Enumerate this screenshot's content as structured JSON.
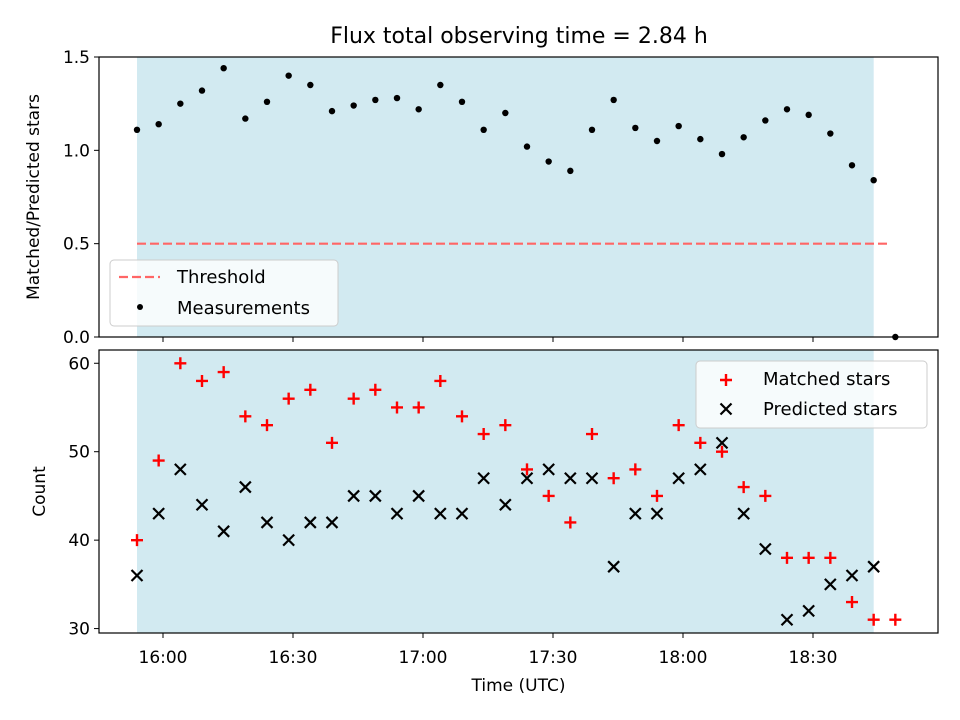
{
  "title": "Flux total observing time = 2.84 h",
  "colors": {
    "band": "#add8e6",
    "threshold": "#ff6666",
    "matched": "#ff0000",
    "predicted": "#000000"
  },
  "chart_data": [
    {
      "type": "scatter",
      "ylabel": "Matched/Predicted stars",
      "ylim": [
        0.0,
        1.5
      ],
      "yticks": [
        "0.0",
        "0.5",
        "1.0",
        "1.5"
      ],
      "shaded_range": [
        "15:54",
        "18:44"
      ],
      "threshold": {
        "name": "Threshold",
        "value": 0.5,
        "x_range": [
          "15:54",
          "18:48"
        ]
      },
      "legend_location": "lower-left",
      "series": [
        {
          "name": "Measurements",
          "x": [
            "15:54",
            "15:59",
            "16:04",
            "16:09",
            "16:14",
            "16:19",
            "16:24",
            "16:29",
            "16:34",
            "16:39",
            "16:44",
            "16:49",
            "16:54",
            "16:59",
            "17:04",
            "17:09",
            "17:14",
            "17:19",
            "17:24",
            "17:29",
            "17:34",
            "17:39",
            "17:44",
            "17:49",
            "17:54",
            "17:59",
            "18:04",
            "18:09",
            "18:14",
            "18:19",
            "18:24",
            "18:29",
            "18:34",
            "18:39",
            "18:44",
            "18:49"
          ],
          "y": [
            1.11,
            1.14,
            1.25,
            1.32,
            1.44,
            1.17,
            1.26,
            1.4,
            1.35,
            1.21,
            1.24,
            1.27,
            1.28,
            1.22,
            1.35,
            1.26,
            1.11,
            1.2,
            1.02,
            0.94,
            0.89,
            1.11,
            1.27,
            1.12,
            1.05,
            1.13,
            1.06,
            0.98,
            1.07,
            1.16,
            1.22,
            1.19,
            1.09,
            0.92,
            0.84,
            0.0
          ]
        }
      ]
    },
    {
      "type": "scatter",
      "ylabel": "Count",
      "xlabel": "Time (UTC)",
      "ylim": [
        29.5,
        61.5
      ],
      "yticks": [
        "30",
        "40",
        "50",
        "60"
      ],
      "xticks": [
        "16:00",
        "16:30",
        "17:00",
        "17:30",
        "18:00",
        "18:30"
      ],
      "shaded_range": [
        "15:54",
        "18:44"
      ],
      "legend_location": "upper-right",
      "series": [
        {
          "name": "Matched stars",
          "marker": "+",
          "x": [
            "15:54",
            "15:59",
            "16:04",
            "16:09",
            "16:14",
            "16:19",
            "16:24",
            "16:29",
            "16:34",
            "16:39",
            "16:44",
            "16:49",
            "16:54",
            "16:59",
            "17:04",
            "17:09",
            "17:14",
            "17:19",
            "17:24",
            "17:29",
            "17:34",
            "17:39",
            "17:44",
            "17:49",
            "17:54",
            "17:59",
            "18:04",
            "18:09",
            "18:14",
            "18:19",
            "18:24",
            "18:29",
            "18:34",
            "18:39",
            "18:44",
            "18:49"
          ],
          "y": [
            40,
            49,
            60,
            58,
            59,
            54,
            53,
            56,
            57,
            51,
            56,
            57,
            55,
            55,
            58,
            54,
            52,
            53,
            48,
            45,
            42,
            52,
            47,
            48,
            45,
            53,
            51,
            50,
            46,
            45,
            38,
            38,
            38,
            33,
            31,
            31
          ]
        },
        {
          "name": "Predicted stars",
          "marker": "x",
          "x": [
            "15:54",
            "15:59",
            "16:04",
            "16:09",
            "16:14",
            "16:19",
            "16:24",
            "16:29",
            "16:34",
            "16:39",
            "16:44",
            "16:49",
            "16:54",
            "16:59",
            "17:04",
            "17:09",
            "17:14",
            "17:19",
            "17:24",
            "17:29",
            "17:34",
            "17:39",
            "17:44",
            "17:49",
            "17:54",
            "17:59",
            "18:04",
            "18:09",
            "18:14",
            "18:19",
            "18:24",
            "18:29",
            "18:34",
            "18:39",
            "18:44"
          ],
          "y": [
            36,
            43,
            48,
            44,
            41,
            46,
            42,
            40,
            42,
            42,
            45,
            45,
            43,
            45,
            43,
            43,
            47,
            44,
            47,
            48,
            47,
            47,
            37,
            43,
            43,
            47,
            48,
            51,
            43,
            39,
            31,
            32,
            35,
            36,
            37
          ]
        }
      ]
    }
  ]
}
